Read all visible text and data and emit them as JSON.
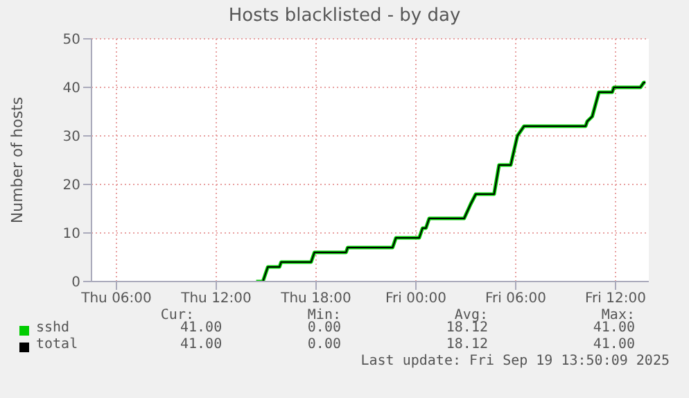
{
  "chart_data": {
    "type": "line",
    "title": "Hosts blacklisted - by day",
    "ylabel": "Number of hosts",
    "xlim": [
      "2025-09-18T04:30",
      "2025-09-19T14:00"
    ],
    "xticks": [
      {
        "value": "2025-09-18T06:00",
        "label": "Thu 06:00"
      },
      {
        "value": "2025-09-18T12:00",
        "label": "Thu 12:00"
      },
      {
        "value": "2025-09-18T18:00",
        "label": "Thu 18:00"
      },
      {
        "value": "2025-09-19T00:00",
        "label": "Fri 00:00"
      },
      {
        "value": "2025-09-19T06:00",
        "label": "Fri 06:00"
      },
      {
        "value": "2025-09-19T12:00",
        "label": "Fri 12:00"
      }
    ],
    "ylim": [
      0,
      50
    ],
    "yticks": [
      0,
      10,
      20,
      30,
      40,
      50
    ],
    "grid": true,
    "legend": "bottom",
    "marker": "none",
    "x": [
      "2025-09-18T14:24",
      "2025-09-18T14:48",
      "2025-09-18T15:06",
      "2025-09-18T15:48",
      "2025-09-18T15:54",
      "2025-09-18T17:42",
      "2025-09-18T17:54",
      "2025-09-18T19:48",
      "2025-09-18T19:54",
      "2025-09-18T22:36",
      "2025-09-18T22:48",
      "2025-09-19T00:12",
      "2025-09-19T00:24",
      "2025-09-19T00:36",
      "2025-09-19T00:48",
      "2025-09-19T02:54",
      "2025-09-19T03:18",
      "2025-09-19T03:36",
      "2025-09-19T04:42",
      "2025-09-19T05:00",
      "2025-09-19T05:42",
      "2025-09-19T05:54",
      "2025-09-19T06:06",
      "2025-09-19T06:30",
      "2025-09-19T10:12",
      "2025-09-19T10:18",
      "2025-09-19T10:36",
      "2025-09-19T11:00",
      "2025-09-19T11:48",
      "2025-09-19T11:54",
      "2025-09-19T13:30",
      "2025-09-19T13:42",
      "2025-09-19T13:48"
    ],
    "series": [
      {
        "name": "sshd",
        "color": "#00cc00",
        "values": [
          0,
          0,
          3,
          3,
          4,
          4,
          6,
          6,
          7,
          7,
          9,
          9,
          11,
          11,
          13,
          13,
          16,
          18,
          18,
          24,
          24,
          27,
          30,
          32,
          32,
          33,
          34,
          39,
          39,
          40,
          40,
          41,
          41
        ]
      },
      {
        "name": "total",
        "color": "#000000",
        "values": [
          0,
          0,
          3,
          3,
          4,
          4,
          6,
          6,
          7,
          7,
          9,
          9,
          11,
          11,
          13,
          13,
          16,
          18,
          18,
          24,
          24,
          27,
          30,
          32,
          32,
          33,
          34,
          39,
          39,
          40,
          40,
          41,
          41
        ]
      }
    ],
    "annotations": [
      "Cur:",
      "Min:",
      "Avg:",
      "Max:",
      "41.00",
      "0.00",
      "18.12",
      "41.00",
      "41.00",
      "0.00",
      "18.12",
      "41.00",
      "Last update: Fri Sep 19 13:50:09 2025"
    ]
  }
}
